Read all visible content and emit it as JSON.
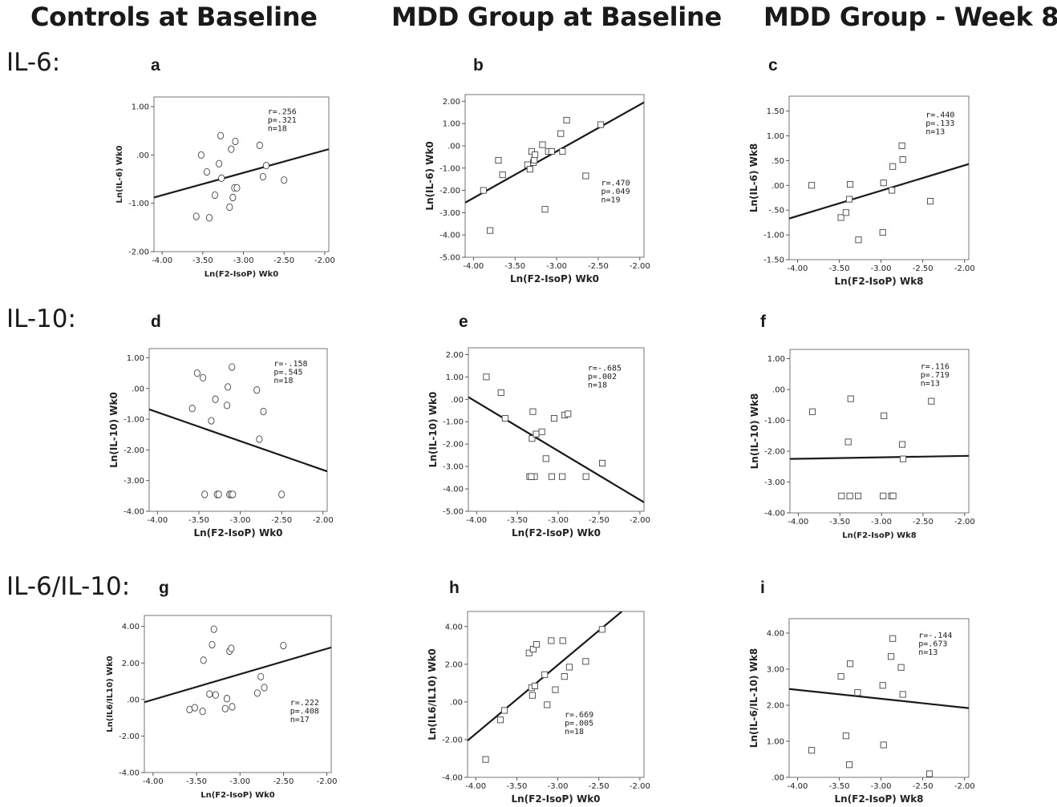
{
  "columns": [
    "Controls at Baseline",
    "MDD Group at Baseline",
    "MDD Group - Week 8"
  ],
  "rows": [
    "IL-6:",
    "IL-10:",
    "IL-6/IL-10:"
  ],
  "chart_data": [
    {
      "id": "a",
      "type": "scatter",
      "marker": "circle",
      "xlabel": "Ln(F2-IsoP) Wk0",
      "ylabel": "Ln(IL-6) Wk0",
      "xlim": [
        -4.1,
        -1.95
      ],
      "ylim": [
        -2.0,
        1.2
      ],
      "xticks": [
        "-4.00",
        "-3.50",
        "-3.00",
        "-2.50",
        "-2.00"
      ],
      "yticks": [
        "1.00",
        ".00",
        "-1.00",
        "-2.00"
      ],
      "stats": [
        "r=.256",
        "p=.321",
        "n=18"
      ],
      "x": [
        -3.58,
        -3.52,
        -3.45,
        -3.42,
        -3.35,
        -3.3,
        -3.28,
        -3.27,
        -3.17,
        -3.15,
        -3.13,
        -3.11,
        -3.1,
        -3.08,
        -2.8,
        -2.76,
        -2.72,
        -2.5
      ],
      "y": [
        -1.27,
        0.0,
        -0.35,
        -1.3,
        -0.83,
        -0.18,
        0.4,
        -0.48,
        -1.08,
        0.12,
        -0.88,
        -0.68,
        0.28,
        -0.68,
        0.2,
        -0.45,
        -0.22,
        -0.52
      ],
      "fit": [
        [
          -4.1,
          -0.88
        ],
        [
          -1.95,
          0.12
        ]
      ]
    },
    {
      "id": "b",
      "type": "scatter",
      "marker": "square",
      "xlabel": "Ln(F2-IsoP) Wk0",
      "ylabel": "Ln(IL-6) Wk0",
      "xlim": [
        -4.1,
        -1.95
      ],
      "ylim": [
        -5.0,
        2.3
      ],
      "xticks": [
        "-4.00",
        "-3.50",
        "-3.00",
        "-2.50",
        "-2.00"
      ],
      "yticks": [
        "2.00",
        "1.00",
        ".00",
        "-1.00",
        "-2.00",
        "-3.00",
        "-4.00",
        "-5.00"
      ],
      "stats": [
        "r=.470",
        "p=.049",
        "n=19"
      ],
      "x": [
        -3.88,
        -3.8,
        -3.7,
        -3.65,
        -3.35,
        -3.32,
        -3.3,
        -3.28,
        -3.27,
        -3.26,
        -3.17,
        -3.14,
        -3.1,
        -3.06,
        -2.95,
        -2.93,
        -2.88,
        -2.65,
        -2.47
      ],
      "y": [
        -2.0,
        -3.8,
        -0.65,
        -1.3,
        -0.85,
        -1.05,
        -0.25,
        -0.75,
        -0.65,
        -0.4,
        0.05,
        -2.85,
        -0.25,
        -0.25,
        0.55,
        -0.25,
        1.15,
        -1.35,
        0.95
      ],
      "fit": [
        [
          -4.1,
          -2.55
        ],
        [
          -1.95,
          1.95
        ]
      ]
    },
    {
      "id": "c",
      "type": "scatter",
      "marker": "square",
      "xlabel": "Ln(F2-IsoP) Wk8",
      "ylabel": "Ln(IL-6) Wk8",
      "xlim": [
        -4.1,
        -1.95
      ],
      "ylim": [
        -1.5,
        1.8
      ],
      "xticks": [
        "-4.00",
        "-3.50",
        "-3.00",
        "-2.50",
        "-2.00"
      ],
      "yticks": [
        "1.50",
        "1.00",
        ".50",
        ".00",
        "-.50",
        "-1.00",
        "-1.50"
      ],
      "stats": [
        "r=.440",
        "p=.133",
        "n=13"
      ],
      "x": [
        -3.83,
        -3.48,
        -3.42,
        -3.38,
        -3.37,
        -3.27,
        -2.98,
        -2.97,
        -2.87,
        -2.86,
        -2.75,
        -2.74,
        -2.41
      ],
      "y": [
        0.0,
        -0.65,
        -0.55,
        -0.28,
        0.02,
        -1.1,
        -0.95,
        0.05,
        -0.1,
        0.38,
        0.8,
        0.52,
        -0.32
      ],
      "fit": [
        [
          -4.1,
          -0.67
        ],
        [
          -1.95,
          0.43
        ]
      ]
    },
    {
      "id": "d",
      "type": "scatter",
      "marker": "circle",
      "xlabel": "Ln(F2-IsoP) Wk0",
      "ylabel": "Ln(IL-10) Wk0",
      "xlim": [
        -4.1,
        -1.95
      ],
      "ylim": [
        -4.0,
        1.3
      ],
      "xticks": [
        "-4.00",
        "-3.50",
        "-3.00",
        "-2.50",
        "-2.00"
      ],
      "yticks": [
        "1.00",
        ".00",
        "-1.00",
        "-2.00",
        "-3.00",
        "-4.00"
      ],
      "stats": [
        "r=-.158",
        "p=.545",
        "n=18"
      ],
      "x": [
        -3.58,
        -3.52,
        -3.45,
        -3.43,
        -3.35,
        -3.3,
        -3.28,
        -3.26,
        -3.16,
        -3.15,
        -3.13,
        -3.11,
        -3.1,
        -3.09,
        -2.8,
        -2.77,
        -2.72,
        -2.5
      ],
      "y": [
        -0.65,
        0.5,
        0.35,
        -3.45,
        -1.05,
        -0.35,
        -3.45,
        -3.45,
        -0.55,
        0.05,
        -3.45,
        -3.45,
        0.7,
        -3.45,
        -0.05,
        -1.65,
        -0.75,
        -3.45
      ],
      "fit": [
        [
          -4.1,
          -0.68
        ],
        [
          -1.95,
          -2.7
        ]
      ]
    },
    {
      "id": "e",
      "type": "scatter",
      "marker": "square",
      "xlabel": "Ln(F2-IsoP) Wk0",
      "ylabel": "Ln(IL-10) Wk0",
      "xlim": [
        -4.1,
        -1.95
      ],
      "ylim": [
        -5.0,
        2.3
      ],
      "xticks": [
        "-4.00",
        "-3.50",
        "-3.00",
        "-2.50",
        "-2.00"
      ],
      "yticks": [
        "2.00",
        "1.00",
        ".00",
        "-1.00",
        "-2.00",
        "-3.00",
        "-4.00",
        "-5.00"
      ],
      "stats": [
        "r=-.685",
        "p=.002",
        "n=18"
      ],
      "x": [
        -3.88,
        -3.7,
        -3.65,
        -3.35,
        -3.32,
        -3.31,
        -3.29,
        -3.27,
        -3.2,
        -3.15,
        -3.08,
        -3.05,
        -2.95,
        -2.92,
        -2.88,
        -2.66,
        -2.46,
        -3.33
      ],
      "y": [
        1.0,
        0.3,
        -0.85,
        -3.45,
        -1.75,
        -0.55,
        -3.45,
        -1.55,
        -1.45,
        -2.65,
        -3.45,
        -0.85,
        -3.45,
        -0.7,
        -0.65,
        -3.45,
        -2.85,
        -3.45
      ],
      "fit": [
        [
          -4.1,
          0.1
        ],
        [
          -1.95,
          -4.6
        ]
      ]
    },
    {
      "id": "f",
      "type": "scatter",
      "marker": "square",
      "xlabel": "Ln(F2-IsoP) Wk8",
      "ylabel": "Ln(IL-10) Wk8",
      "xlim": [
        -4.1,
        -1.95
      ],
      "ylim": [
        -4.0,
        1.3
      ],
      "xticks": [
        "-4.00",
        "-3.50",
        "-3.00",
        "-2.50",
        "-2.00"
      ],
      "yticks": [
        "1.00",
        ".00",
        "-1.00",
        "-2.00",
        "-3.00",
        "-4.00"
      ],
      "stats": [
        "r=.116",
        "p=.719",
        "n=13"
      ],
      "x": [
        -3.83,
        -3.48,
        -3.4,
        -3.38,
        -3.37,
        -3.28,
        -2.98,
        -2.97,
        -2.88,
        -2.86,
        -2.75,
        -2.74,
        -2.4
      ],
      "y": [
        -0.72,
        -3.45,
        -1.7,
        -3.45,
        -0.3,
        -3.45,
        -3.45,
        -0.85,
        -3.45,
        -3.45,
        -1.78,
        -2.25,
        -0.38
      ],
      "fit": [
        [
          -4.1,
          -2.25
        ],
        [
          -1.95,
          -2.15
        ]
      ]
    },
    {
      "id": "g",
      "type": "scatter",
      "marker": "circle",
      "xlabel": "Ln(F2-IsoP) Wk0",
      "ylabel": "Ln(IL6/IL10) Wk0",
      "xlim": [
        -4.1,
        -1.95
      ],
      "ylim": [
        -4.0,
        4.6
      ],
      "xticks": [
        "-4.00",
        "-3.50",
        "-3.00",
        "-2.50",
        "-2.00"
      ],
      "yticks": [
        "4.00",
        "2.00",
        ".00",
        "-2.00",
        "-4.00"
      ],
      "stats": [
        "r=.222",
        "p=.408",
        "n=17"
      ],
      "x": [
        -3.58,
        -3.52,
        -3.43,
        -3.42,
        -3.35,
        -3.32,
        -3.3,
        -3.28,
        -3.17,
        -3.15,
        -3.12,
        -3.1,
        -3.09,
        -2.8,
        -2.76,
        -2.72,
        -2.5
      ],
      "y": [
        -0.55,
        -0.45,
        -0.65,
        2.15,
        0.3,
        3.0,
        3.85,
        0.25,
        -0.5,
        0.05,
        2.65,
        2.8,
        -0.4,
        0.35,
        1.25,
        0.65,
        2.95
      ],
      "fit": [
        [
          -4.1,
          -0.15
        ],
        [
          -1.95,
          2.85
        ]
      ]
    },
    {
      "id": "h",
      "type": "scatter",
      "marker": "square",
      "xlabel": "Ln(F2-IsoP) Wk0",
      "ylabel": "Ln(IL6/IL10) Wk0",
      "xlim": [
        -4.1,
        -1.95
      ],
      "ylim": [
        -4.0,
        4.8
      ],
      "xticks": [
        "-4.00",
        "-3.50",
        "-3.00",
        "-2.50",
        "-2.00"
      ],
      "yticks": [
        "4.00",
        "2.00",
        ".00",
        "-2.00",
        "-4.00"
      ],
      "stats": [
        "r=.669",
        "p=.005",
        "n=18"
      ],
      "x": [
        -3.88,
        -3.7,
        -3.65,
        -3.35,
        -3.32,
        -3.31,
        -3.3,
        -3.28,
        -3.26,
        -3.16,
        -3.13,
        -3.08,
        -3.03,
        -2.94,
        -2.92,
        -2.86,
        -2.66,
        -2.46
      ],
      "y": [
        -3.05,
        -0.95,
        -0.45,
        2.6,
        0.75,
        0.35,
        2.8,
        0.85,
        3.05,
        1.45,
        -0.15,
        3.25,
        0.65,
        3.25,
        1.35,
        1.85,
        2.15,
        3.85
      ],
      "fit": [
        [
          -4.1,
          -2.05
        ],
        [
          -2.22,
          4.8
        ]
      ]
    },
    {
      "id": "i",
      "type": "scatter",
      "marker": "square",
      "xlabel": "Ln(F2-IsoP) Wk8",
      "ylabel": "Ln(IL-6/IL-10) Wk8",
      "xlim": [
        -4.1,
        -1.95
      ],
      "ylim": [
        0.0,
        4.4
      ],
      "xticks": [
        "-4.00",
        "-3.50",
        "-3.00",
        "-2.50",
        "-2.00"
      ],
      "yticks": [
        "4.00",
        "3.00",
        "2.00",
        "1.00",
        ".00"
      ],
      "stats": [
        "r=-.144",
        "p=.673",
        "n=13"
      ],
      "x": [
        -3.83,
        -3.48,
        -3.42,
        -3.38,
        -3.37,
        -3.28,
        -2.98,
        -2.97,
        -2.88,
        -2.86,
        -2.76,
        -2.74,
        -2.42
      ],
      "y": [
        0.75,
        2.8,
        1.15,
        0.35,
        3.15,
        2.35,
        2.55,
        0.9,
        3.35,
        3.85,
        3.05,
        2.3,
        0.1
      ],
      "fit": [
        [
          -4.1,
          2.45
        ],
        [
          -1.95,
          1.92
        ]
      ]
    }
  ]
}
